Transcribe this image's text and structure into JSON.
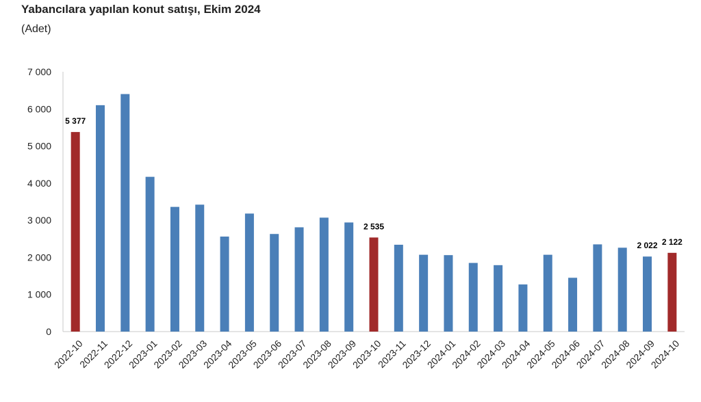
{
  "chart_data": {
    "type": "bar",
    "title": "Yabancılara yapılan konut satışı, Ekim 2024",
    "subtitle": "(Adet)",
    "xlabel": "",
    "ylabel": "",
    "ylim": [
      0,
      7000
    ],
    "yticks": [
      0,
      1000,
      2000,
      3000,
      4000,
      5000,
      6000,
      7000
    ],
    "ytick_labels": [
      "0",
      "1 000",
      "2 000",
      "3 000",
      "4 000",
      "5 000",
      "6 000",
      "7 000"
    ],
    "categories": [
      "2022-10",
      "2022-11",
      "2022-12",
      "2023-01",
      "2023-02",
      "2023-03",
      "2023-04",
      "2023-05",
      "2023-06",
      "2023-07",
      "2023-08",
      "2023-09",
      "2023-10",
      "2023-11",
      "2023-12",
      "2024-01",
      "2024-02",
      "2024-03",
      "2024-04",
      "2024-05",
      "2024-06",
      "2024-07",
      "2024-08",
      "2024-09",
      "2024-10"
    ],
    "values": [
      5377,
      6100,
      6400,
      4170,
      3360,
      3420,
      2560,
      3180,
      2630,
      2810,
      3070,
      2940,
      2535,
      2340,
      2070,
      2060,
      1850,
      1790,
      1270,
      2070,
      1450,
      2350,
      2260,
      2022,
      2122
    ],
    "highlighted": [
      0,
      12,
      24
    ],
    "data_labels": [
      {
        "index": 0,
        "text": "5 377"
      },
      {
        "index": 12,
        "text": "2 535"
      },
      {
        "index": 23,
        "text": "2 022"
      },
      {
        "index": 24,
        "text": "2 122"
      }
    ],
    "colors": {
      "default": "#4a7fb8",
      "highlight": "#a12a2a"
    },
    "grid": false,
    "legend": "none"
  }
}
